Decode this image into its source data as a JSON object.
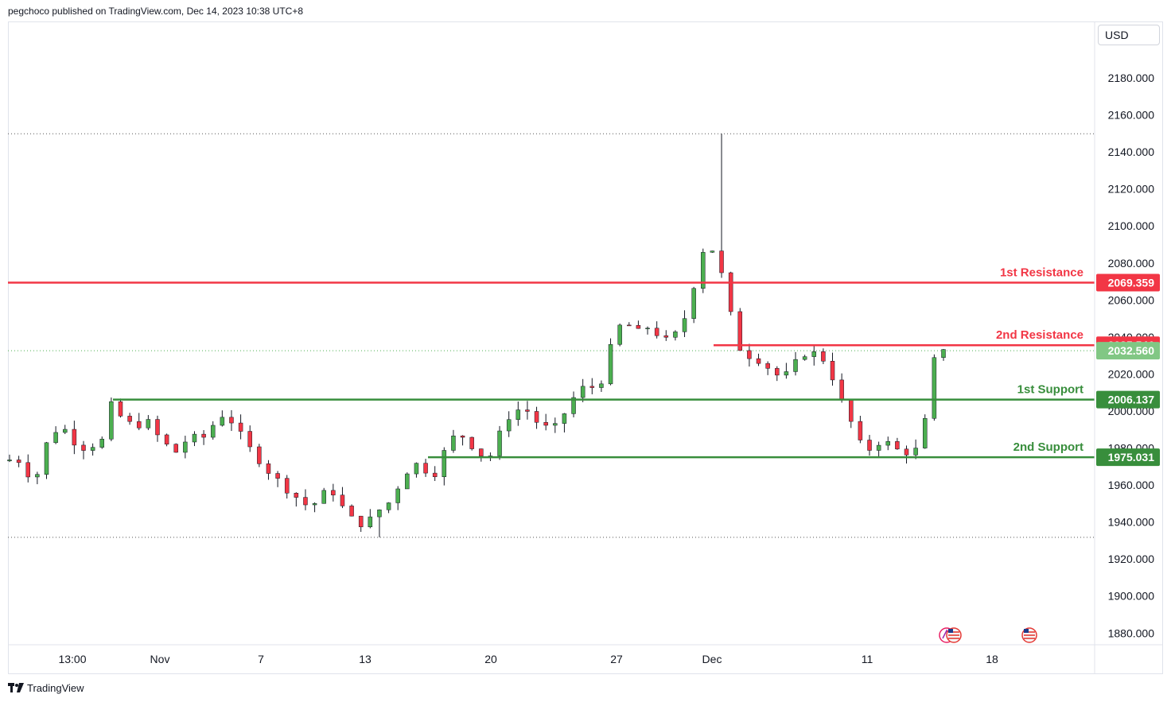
{
  "header": {
    "text": "pegchoco published on TradingView.com, Dec 14, 2023 10:38 UTC+8"
  },
  "currency": "USD",
  "footer": {
    "brand": "TradingView"
  },
  "colors": {
    "resistance": "#f23645",
    "support": "#388e3c",
    "up": "#4caf50",
    "down": "#f23645",
    "wick": "#131722",
    "last": "#81c784"
  },
  "chart_data": {
    "type": "candlestick",
    "title": "",
    "ylim": [
      1870,
      2195
    ],
    "y_ticks": [
      "2180.000",
      "2160.000",
      "2140.000",
      "2120.000",
      "2100.000",
      "2080.000",
      "2060.000",
      "2040.000",
      "2020.000",
      "2000.000",
      "1980.000",
      "1960.000",
      "1940.000",
      "1920.000",
      "1900.000",
      "1880.000"
    ],
    "x_ticks": [
      "13:00",
      "Nov",
      "7",
      "13",
      "20",
      "27",
      "Dec",
      "11",
      "18"
    ],
    "session_high": 2149.8,
    "session_low": 1931.7,
    "last_price": "2032.560",
    "levels": [
      {
        "name": "1st Resistance",
        "value": 2069.359,
        "label": "2069.359",
        "kind": "resistance"
      },
      {
        "name": "2nd Resistance",
        "value": 2035.546,
        "label": "2035.546",
        "kind": "resistance"
      },
      {
        "name": "1st Support",
        "value": 2006.137,
        "label": "2006.137",
        "kind": "support"
      },
      {
        "name": "2nd Support",
        "value": 1975.031,
        "label": "1975.031",
        "kind": "support"
      }
    ],
    "price_path": [
      1973,
      1975,
      1968,
      1960,
      1980,
      1988,
      1992,
      1985,
      1978,
      1984,
      1975,
      2006,
      1998,
      1995,
      1990,
      1997,
      1988,
      1984,
      1976,
      1982,
      1987,
      1984,
      1990,
      1998,
      1996,
      1990,
      1982,
      1975,
      1968,
      1965,
      1958,
      1955,
      1950,
      1948,
      1955,
      1958,
      1950,
      1944,
      1938,
      1940,
      1946,
      1948,
      1956,
      1965,
      1972,
      1970,
      1962,
      1975,
      1985,
      1988,
      1982,
      1978,
      1972,
      1985,
      1995,
      2000,
      2002,
      1995,
      1992,
      1990,
      1996,
      2005,
      2012,
      2014,
      2010,
      2030,
      2045,
      2048,
      2042,
      2046,
      2043,
      2038,
      2040,
      2046,
      2060,
      2085,
      2090,
      2080,
      2060,
      2035,
      2030,
      2028,
      2025,
      2020,
      2018,
      2025,
      2030,
      2032,
      2030,
      2022,
      2008,
      1998,
      1985,
      1978,
      1982,
      1984,
      1980,
      1977,
      1978,
      1982,
      2025,
      2034
    ]
  }
}
